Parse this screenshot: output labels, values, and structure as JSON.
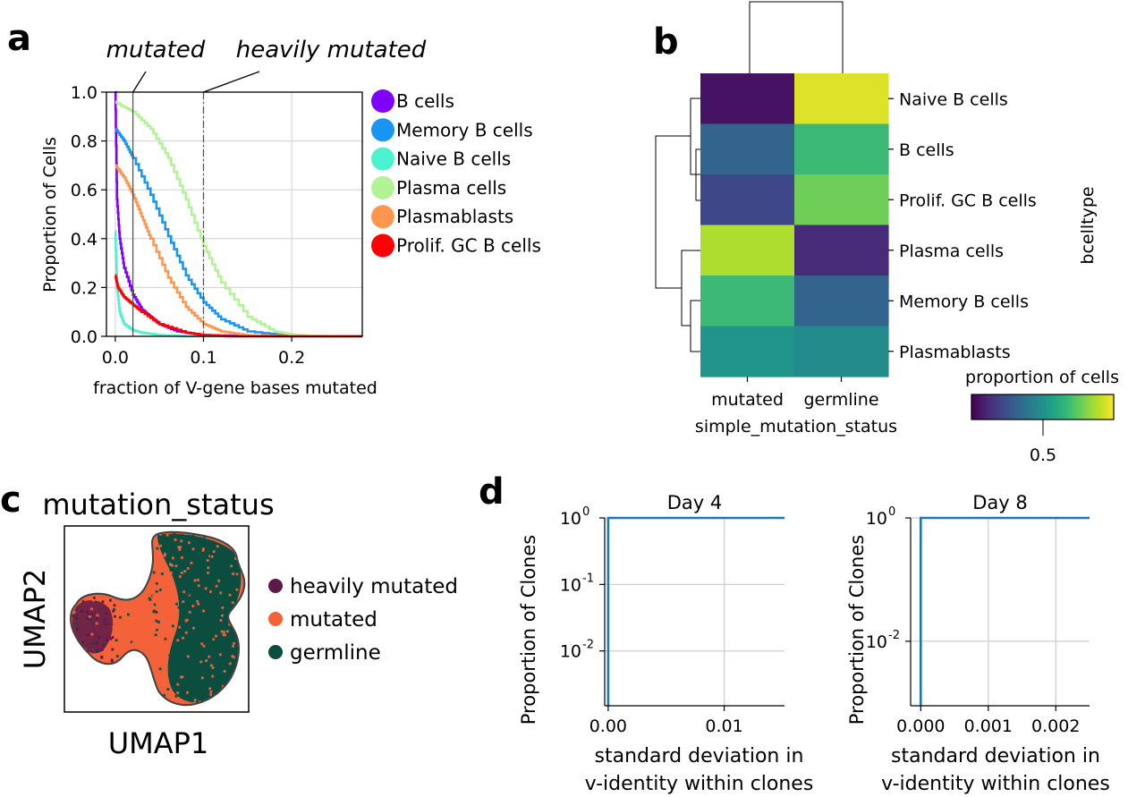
{
  "panel_labels": {
    "a": "a",
    "b": "b",
    "c": "c",
    "d": "d"
  },
  "chart_data": [
    {
      "panel": "a",
      "type": "line",
      "xlabel": "fraction of V-gene bases mutated",
      "ylabel": "Proportion of Cells",
      "xlim": [
        -0.01,
        0.28
      ],
      "ylim": [
        0,
        1.0
      ],
      "xticks": [
        "0.0",
        "0.1",
        "0.2"
      ],
      "xtick_values": [
        0,
        0.1,
        0.2
      ],
      "yticks": [
        "0.0",
        "0.2",
        "0.4",
        "0.6",
        "0.8",
        "1.0"
      ],
      "ytick_values": [
        0,
        0.2,
        0.4,
        0.6,
        0.8,
        1.0
      ],
      "grid": true,
      "legend_placement": "outside-right",
      "thresholds": [
        {
          "x": 0.02,
          "label": "mutated"
        },
        {
          "x": 0.1,
          "label": "heavily mutated"
        }
      ],
      "series": [
        {
          "name": "B cells",
          "color": "#8000ff",
          "x": [
            0,
            0.002,
            0.005,
            0.01,
            0.02,
            0.03,
            0.04,
            0.05,
            0.07,
            0.1,
            0.15,
            0.2
          ],
          "y": [
            1.0,
            0.56,
            0.4,
            0.28,
            0.17,
            0.11,
            0.08,
            0.05,
            0.02,
            0.005,
            0.001,
            0
          ]
        },
        {
          "name": "Memory B cells",
          "color": "#1996f3",
          "x": [
            0,
            0.01,
            0.02,
            0.04,
            0.06,
            0.08,
            0.1,
            0.12,
            0.15,
            0.2
          ],
          "y": [
            0.85,
            0.8,
            0.73,
            0.58,
            0.41,
            0.25,
            0.14,
            0.07,
            0.02,
            0
          ]
        },
        {
          "name": "Naive B cells",
          "color": "#4df3ce",
          "x": [
            0,
            0.002,
            0.005,
            0.01,
            0.02,
            0.03,
            0.05,
            0.08
          ],
          "y": [
            0.43,
            0.2,
            0.1,
            0.05,
            0.025,
            0.015,
            0.005,
            0
          ]
        },
        {
          "name": "Plasma cells",
          "color": "#b2f396",
          "x": [
            0,
            0.01,
            0.02,
            0.04,
            0.06,
            0.08,
            0.1,
            0.12,
            0.15,
            0.18,
            0.2,
            0.22,
            0.25
          ],
          "y": [
            0.96,
            0.94,
            0.92,
            0.85,
            0.73,
            0.56,
            0.37,
            0.22,
            0.08,
            0.02,
            0.008,
            0.002,
            0
          ]
        },
        {
          "name": "Plasmablasts",
          "color": "#ff964f",
          "x": [
            0,
            0.01,
            0.02,
            0.03,
            0.04,
            0.06,
            0.08,
            0.1,
            0.12,
            0.15,
            0.2
          ],
          "y": [
            0.7,
            0.65,
            0.58,
            0.49,
            0.4,
            0.24,
            0.12,
            0.05,
            0.02,
            0.004,
            0
          ]
        },
        {
          "name": "Prolif. GC B cells",
          "color": "#ff0000",
          "x": [
            0,
            0.003,
            0.01,
            0.02,
            0.03,
            0.05,
            0.08,
            0.1,
            0.13
          ],
          "y": [
            0.25,
            0.2,
            0.16,
            0.13,
            0.1,
            0.05,
            0.015,
            0.005,
            0
          ]
        }
      ]
    },
    {
      "panel": "b",
      "type": "heatmap",
      "xlabel": "simple_mutation_status",
      "ylabel": "bcelltype",
      "columns": [
        "mutated",
        "germline"
      ],
      "rows": [
        "Naive B cells",
        "B cells",
        "Prolif. GC B cells",
        "Plasma cells",
        "Memory B cells",
        "Plasmablasts"
      ],
      "values": [
        [
          0.05,
          0.95
        ],
        [
          0.32,
          0.68
        ],
        [
          0.22,
          0.78
        ],
        [
          0.88,
          0.12
        ],
        [
          0.68,
          0.32
        ],
        [
          0.52,
          0.48
        ]
      ],
      "colorbar_label": "proportion of cells",
      "colorbar_ticks": [
        "0.5"
      ],
      "colorbar_tick_values": [
        0.5
      ],
      "colormap": "viridis",
      "viridis_stops": [
        "#440154",
        "#482878",
        "#3e4989",
        "#31688e",
        "#26828e",
        "#1f9e89",
        "#35b779",
        "#6ece58",
        "#b5de2b",
        "#fde725"
      ]
    },
    {
      "panel": "c",
      "type": "scatter",
      "title": "mutation_status",
      "xlabel": "UMAP1",
      "ylabel": "UMAP2",
      "legend_placement": "outside-right",
      "categories": [
        {
          "name": "heavily mutated",
          "color": "#5a1a4a"
        },
        {
          "name": "mutated",
          "color": "#f4623a"
        },
        {
          "name": "germline",
          "color": "#0b4d3f"
        }
      ]
    },
    {
      "panel": "d",
      "type": "line",
      "title": "Day 4",
      "xlabel_lines": [
        "standard deviation in",
        "v-identity within clones"
      ],
      "ylabel": "Proportion of Clones",
      "yscale": "log",
      "ylim": [
        0.0015,
        1.0
      ],
      "xlim": [
        -0.0003,
        0.0152
      ],
      "xticks": [
        "0.00",
        "0.01"
      ],
      "xtick_values": [
        0,
        0.01
      ],
      "yticks": [
        "0",
        "-1",
        "-2"
      ],
      "ytick_values": [
        1,
        0.1,
        0.01
      ],
      "grid": true,
      "series": [
        {
          "color": "#1f77b4",
          "x": [
            0,
            0,
            0.0152
          ],
          "y": [
            0.0015,
            1.0,
            1.0
          ]
        }
      ]
    },
    {
      "panel": "d",
      "type": "line",
      "title": "Day 8",
      "xlabel_lines": [
        "standard deviation in",
        "v-identity within clones"
      ],
      "ylabel": "Proportion of Clones",
      "yscale": "log",
      "ylim": [
        0.0009,
        1.0
      ],
      "xlim": [
        -0.00015,
        0.0025
      ],
      "xticks": [
        "0.000",
        "0.001",
        "0.002"
      ],
      "xtick_values": [
        0,
        0.001,
        0.002
      ],
      "yticks": [
        "0",
        "-2"
      ],
      "ytick_values": [
        1,
        0.01
      ],
      "grid": true,
      "series": [
        {
          "color": "#1f77b4",
          "x": [
            0,
            0,
            0.0025
          ],
          "y": [
            0.0009,
            1.0,
            1.0
          ]
        }
      ]
    }
  ]
}
